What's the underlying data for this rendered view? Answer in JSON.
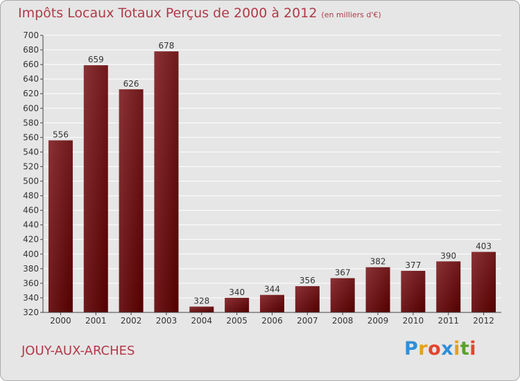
{
  "chart_data": {
    "type": "bar",
    "title": "Impôts Locaux Totaux Perçus de 2000 à 2012",
    "unit_label": "(en milliers d'€)",
    "xlabel": "",
    "ylabel": "",
    "ylim": [
      320,
      700
    ],
    "ytick_step": 20,
    "grid": true,
    "categories": [
      "2000",
      "2001",
      "2002",
      "2003",
      "2004",
      "2005",
      "2006",
      "2007",
      "2008",
      "2009",
      "2010",
      "2011",
      "2012"
    ],
    "values": [
      556,
      659,
      626,
      678,
      328,
      340,
      344,
      356,
      367,
      382,
      377,
      390,
      403
    ]
  },
  "commune": "JOUY-AUX-ARCHES",
  "logo": {
    "letters": [
      "P",
      "r",
      "o",
      "x",
      "i",
      "t",
      "i"
    ],
    "colors": [
      "#2f8fd8",
      "#e2a21a",
      "#e0462e",
      "#2f8fd8",
      "#e2a21a",
      "#5aa02c",
      "#e0462e"
    ]
  },
  "colors": {
    "bar_top": "#8a3236",
    "bar_bottom": "#520000",
    "accent": "#b03a48"
  }
}
